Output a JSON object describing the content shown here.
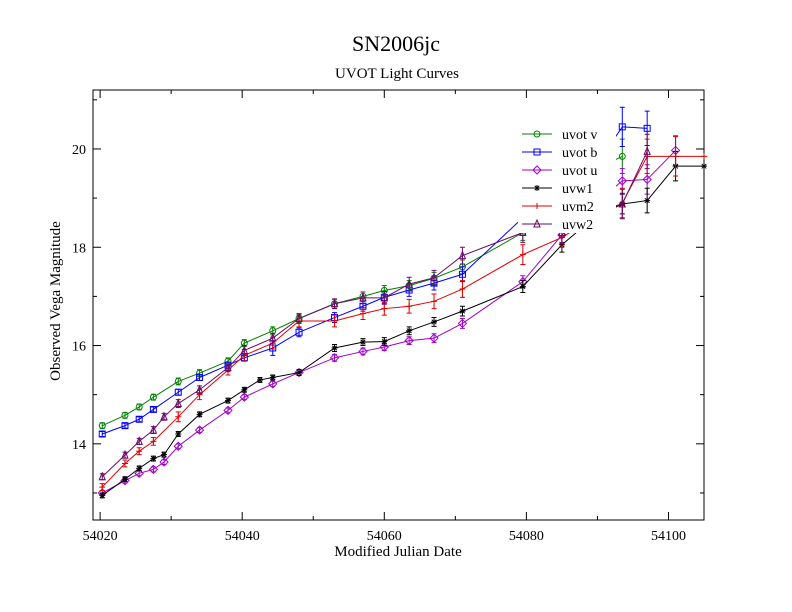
{
  "chart_data": {
    "type": "line",
    "title": "SN2006jc",
    "subtitle": "UVOT Light Curves",
    "xlabel": "Modified Julian Date",
    "ylabel": "Observed Vega Magnitude",
    "xlim": [
      54019,
      54105
    ],
    "ylim": [
      21.2,
      12.45
    ],
    "y_inverted": true,
    "x_ticks": [
      54020,
      54040,
      54060,
      54080,
      54100
    ],
    "y_ticks": [
      14,
      16,
      18,
      20
    ],
    "grid": false,
    "legend_position": "top-right",
    "series": [
      {
        "name": "uvot v",
        "color": "#008000",
        "marker": "circle",
        "points": [
          [
            54020.3,
            14.37
          ],
          [
            54023.5,
            14.58
          ],
          [
            54025.5,
            14.75
          ],
          [
            54027.5,
            14.95
          ],
          [
            54031,
            15.27
          ],
          [
            54034,
            15.44
          ],
          [
            54038,
            15.68
          ],
          [
            54040.3,
            16.05
          ],
          [
            54044.3,
            16.3
          ],
          [
            54048,
            16.55
          ],
          [
            54053,
            16.85
          ],
          [
            54057,
            17.0
          ],
          [
            54060,
            17.12
          ],
          [
            54063.5,
            17.22
          ],
          [
            54067,
            17.37
          ],
          [
            54071,
            17.6
          ],
          [
            54079.5,
            18.3
          ],
          [
            54085,
            19.05
          ],
          [
            54089.5,
            19.57
          ],
          [
            54093.5,
            19.85
          ]
        ],
        "errors": [
          0.06,
          0.06,
          0.06,
          0.06,
          0.07,
          0.07,
          0.07,
          0.07,
          0.08,
          0.08,
          0.09,
          0.09,
          0.1,
          0.1,
          0.12,
          0.14,
          0.16,
          0.18,
          0.2,
          0.35
        ]
      },
      {
        "name": "uvot b",
        "color": "#0000ff",
        "marker": "square",
        "points": [
          [
            54020.3,
            14.2
          ],
          [
            54023.5,
            14.37
          ],
          [
            54025.5,
            14.5
          ],
          [
            54027.5,
            14.7
          ],
          [
            54031,
            15.05
          ],
          [
            54034,
            15.35
          ],
          [
            54038,
            15.6
          ],
          [
            54040.3,
            15.75
          ],
          [
            54044.3,
            15.95
          ],
          [
            54048,
            16.27
          ],
          [
            54053,
            16.57
          ],
          [
            54057,
            16.8
          ],
          [
            54060,
            16.98
          ],
          [
            54063.5,
            17.13
          ],
          [
            54067,
            17.27
          ],
          [
            54071,
            17.45
          ],
          [
            54079.5,
            18.6
          ],
          [
            54085,
            19.35
          ],
          [
            54089.5,
            19.6
          ],
          [
            54093.5,
            20.45
          ],
          [
            54097,
            20.42
          ]
        ],
        "errors": [
          0.05,
          0.05,
          0.05,
          0.05,
          0.06,
          0.06,
          0.06,
          0.06,
          0.15,
          0.09,
          0.1,
          0.1,
          0.12,
          0.13,
          0.14,
          0.15,
          0.17,
          0.2,
          0.25,
          0.4,
          0.35
        ]
      },
      {
        "name": "uvot u",
        "color": "#a000c8",
        "marker": "diamond",
        "points": [
          [
            54020.3,
            13.0
          ],
          [
            54023.5,
            13.25
          ],
          [
            54025.5,
            13.4
          ],
          [
            54027.5,
            13.48
          ],
          [
            54029,
            13.63
          ],
          [
            54031,
            13.95
          ],
          [
            54034,
            14.28
          ],
          [
            54038,
            14.68
          ],
          [
            54040.3,
            14.95
          ],
          [
            54044.3,
            15.22
          ],
          [
            54048,
            15.45
          ],
          [
            54053,
            15.75
          ],
          [
            54057,
            15.88
          ],
          [
            54060,
            15.97
          ],
          [
            54063.5,
            16.1
          ],
          [
            54067,
            16.15
          ],
          [
            54071,
            16.45
          ],
          [
            54079.5,
            17.3
          ],
          [
            54085,
            18.25
          ],
          [
            54089.5,
            18.87
          ],
          [
            54093.5,
            19.35
          ],
          [
            54097,
            19.38
          ],
          [
            54101,
            19.97
          ]
        ],
        "errors": [
          0.05,
          0.05,
          0.05,
          0.05,
          0.05,
          0.05,
          0.05,
          0.05,
          0.05,
          0.05,
          0.06,
          0.07,
          0.07,
          0.07,
          0.08,
          0.09,
          0.1,
          0.12,
          0.15,
          0.18,
          0.25,
          0.3,
          0.3
        ]
      },
      {
        "name": "uvw1",
        "color": "#000000",
        "marker": "star",
        "points": [
          [
            54020.3,
            12.95
          ],
          [
            54023.5,
            13.28
          ],
          [
            54025.5,
            13.5
          ],
          [
            54027.5,
            13.7
          ],
          [
            54029,
            13.78
          ],
          [
            54031,
            14.2
          ],
          [
            54034,
            14.6
          ],
          [
            54038,
            14.88
          ],
          [
            54040.3,
            15.1
          ],
          [
            54042.5,
            15.3
          ],
          [
            54044.3,
            15.35
          ],
          [
            54048,
            15.45
          ],
          [
            54053,
            15.95
          ],
          [
            54057,
            16.07
          ],
          [
            54060,
            16.08
          ],
          [
            54063.5,
            16.3
          ],
          [
            54067,
            16.48
          ],
          [
            54071,
            16.7
          ],
          [
            54079.5,
            17.2
          ],
          [
            54085,
            18.05
          ],
          [
            54089.5,
            18.6
          ],
          [
            54093.5,
            18.88
          ],
          [
            54097,
            18.95
          ],
          [
            54101,
            19.65
          ],
          [
            54105,
            19.65
          ]
        ],
        "errors": [
          0.05,
          0.05,
          0.05,
          0.05,
          0.05,
          0.05,
          0.05,
          0.05,
          0.05,
          0.05,
          0.05,
          0.06,
          0.07,
          0.07,
          0.08,
          0.08,
          0.09,
          0.1,
          0.12,
          0.15,
          0.18,
          0.2,
          0.25,
          0.3,
          0
        ]
      },
      {
        "name": "uvm2",
        "color": "#e00000",
        "marker": "plus",
        "points": [
          [
            54020.3,
            13.12
          ],
          [
            54023.5,
            13.6
          ],
          [
            54025.5,
            13.85
          ],
          [
            54027.5,
            14.05
          ],
          [
            54031,
            14.55
          ],
          [
            54034,
            15.0
          ],
          [
            54038,
            15.5
          ],
          [
            54040.3,
            15.8
          ],
          [
            54044.3,
            16.05
          ],
          [
            54048,
            16.5
          ],
          [
            54053,
            16.5
          ],
          [
            54057,
            16.65
          ],
          [
            54060,
            16.75
          ],
          [
            54063.5,
            16.8
          ],
          [
            54067,
            16.9
          ],
          [
            54071,
            17.15
          ],
          [
            54079.5,
            17.85
          ],
          [
            54085,
            18.2
          ],
          [
            54089.5,
            18.6
          ],
          [
            54093.5,
            18.9
          ],
          [
            54097,
            19.85
          ],
          [
            54101,
            19.85
          ],
          [
            54105,
            19.85
          ]
        ],
        "errors": [
          0.07,
          0.07,
          0.07,
          0.08,
          0.1,
          0.1,
          0.1,
          0.12,
          0.12,
          0.12,
          0.12,
          0.12,
          0.13,
          0.14,
          0.15,
          0.17,
          0.2,
          0.2,
          0.25,
          0.3,
          0.35,
          0.4,
          0
        ]
      },
      {
        "name": "uvw2",
        "color": "#6a0a6a",
        "marker": "triangle",
        "points": [
          [
            54020.3,
            13.33
          ],
          [
            54023.5,
            13.77
          ],
          [
            54025.5,
            14.05
          ],
          [
            54027.5,
            14.28
          ],
          [
            54029,
            14.55
          ],
          [
            54031,
            14.82
          ],
          [
            54034,
            15.1
          ],
          [
            54038,
            15.55
          ],
          [
            54040.3,
            15.9
          ],
          [
            54044.3,
            16.15
          ],
          [
            54048,
            16.55
          ],
          [
            54053,
            16.85
          ],
          [
            54057,
            16.97
          ],
          [
            54060,
            16.97
          ],
          [
            54063.5,
            17.25
          ],
          [
            54067,
            17.38
          ],
          [
            54071,
            17.83
          ],
          [
            54079.5,
            18.3
          ],
          [
            54085,
            18.3
          ],
          [
            54089.5,
            18.72
          ],
          [
            54093.5,
            18.88
          ],
          [
            54097,
            19.95
          ]
        ],
        "errors": [
          0.06,
          0.06,
          0.06,
          0.07,
          0.07,
          0.08,
          0.08,
          0.08,
          0.1,
          0.1,
          0.1,
          0.1,
          0.12,
          0.13,
          0.14,
          0.15,
          0.17,
          0.2,
          0.22,
          0.25,
          0.3,
          0.35
        ]
      }
    ]
  }
}
